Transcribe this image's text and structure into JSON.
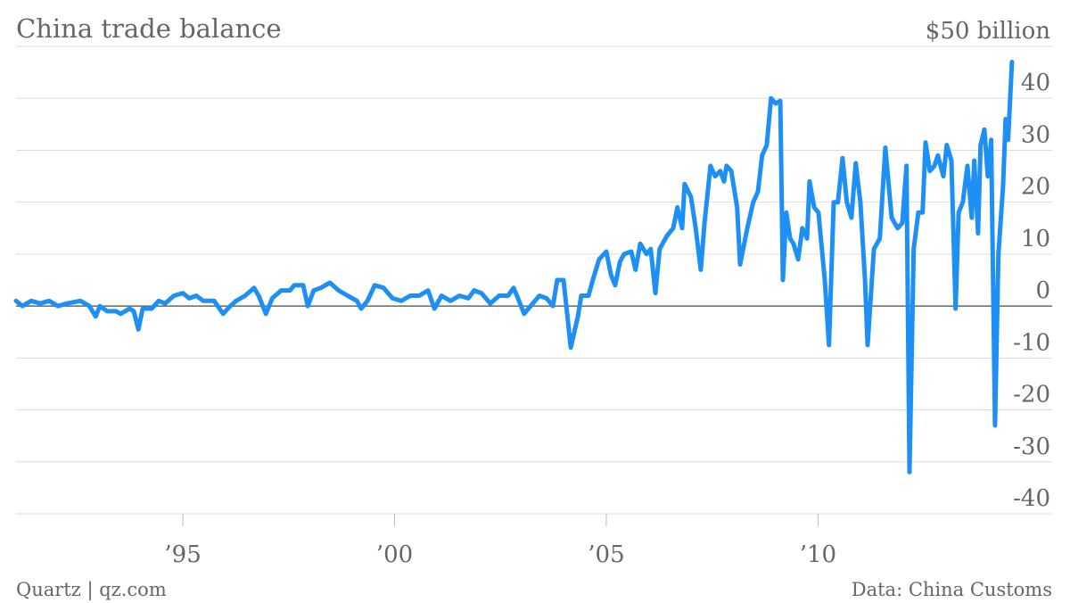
{
  "chart_data": {
    "type": "line",
    "title": "China trade balance",
    "source": "Data: China Customs",
    "credit": "Quartz | qz.com",
    "x": [
      1991.06,
      1991.21,
      1991.42,
      1991.63,
      1991.84,
      1992.05,
      1992.26,
      1992.58,
      1992.79,
      1992.94,
      1993.04,
      1993.21,
      1993.42,
      1993.53,
      1993.74,
      1993.84,
      1993.95,
      1994.05,
      1994.26,
      1994.43,
      1994.58,
      1994.79,
      1995.0,
      1995.15,
      1995.32,
      1995.48,
      1995.74,
      1995.95,
      1996.12,
      1996.26,
      1996.47,
      1996.68,
      1996.79,
      1996.96,
      1997.11,
      1997.32,
      1997.53,
      1997.63,
      1997.84,
      1997.95,
      1998.09,
      1998.26,
      1998.47,
      1998.68,
      1998.89,
      1999.11,
      1999.21,
      1999.36,
      1999.53,
      1999.74,
      1999.95,
      2000.16,
      2000.37,
      2000.58,
      2000.79,
      2000.94,
      2001.11,
      2001.32,
      2001.53,
      2001.74,
      2001.88,
      2002.05,
      2002.26,
      2002.47,
      2002.68,
      2002.81,
      2002.94,
      2003.06,
      2003.21,
      2003.42,
      2003.59,
      2003.74,
      2003.84,
      2003.99,
      2004.16,
      2004.33,
      2004.41,
      2004.58,
      2004.68,
      2004.83,
      2005.0,
      2005.11,
      2005.21,
      2005.32,
      2005.42,
      2005.59,
      2005.69,
      2005.8,
      2005.95,
      2006.05,
      2006.16,
      2006.26,
      2006.43,
      2006.58,
      2006.68,
      2006.79,
      2006.85,
      2007.0,
      2007.11,
      2007.23,
      2007.32,
      2007.46,
      2007.57,
      2007.69,
      2007.78,
      2007.84,
      2007.95,
      2008.09,
      2008.16,
      2008.33,
      2008.47,
      2008.58,
      2008.68,
      2008.79,
      2008.89,
      2009.0,
      2009.11,
      2009.17,
      2009.25,
      2009.34,
      2009.42,
      2009.53,
      2009.63,
      2009.74,
      2009.8,
      2009.91,
      2010.01,
      2010.16,
      2010.26,
      2010.37,
      2010.47,
      2010.58,
      2010.68,
      2010.79,
      2010.89,
      2011.0,
      2011.11,
      2011.17,
      2011.32,
      2011.46,
      2011.59,
      2011.74,
      2011.88,
      2011.99,
      2012.09,
      2012.16,
      2012.26,
      2012.37,
      2012.47,
      2012.54,
      2012.64,
      2012.75,
      2012.83,
      2012.96,
      2013.04,
      2013.15,
      2013.25,
      2013.32,
      2013.42,
      2013.53,
      2013.63,
      2013.69,
      2013.78,
      2013.84,
      2013.93,
      2014.01,
      2014.09,
      2014.18,
      2014.26,
      2014.37,
      2014.43,
      2014.49,
      2014.58
    ],
    "series": [
      {
        "color": "#1e90f5",
        "values": [
          1,
          0,
          1,
          0.5,
          1,
          0,
          0.5,
          1,
          0,
          -2,
          0,
          -1,
          -1,
          -1.5,
          -0.5,
          -1,
          -4.5,
          -0.5,
          -0.5,
          1,
          0.5,
          2,
          2.5,
          1.5,
          2,
          1,
          1,
          -1.5,
          0,
          1,
          2,
          3.5,
          2,
          -1.5,
          1.5,
          3,
          3,
          4,
          4,
          0,
          3,
          3.5,
          4.5,
          3,
          2,
          1,
          -0.5,
          1,
          4,
          3.5,
          1.5,
          1,
          2,
          2,
          3,
          -0.5,
          2,
          1,
          2,
          1.5,
          3,
          2.5,
          0.5,
          2,
          2,
          3.5,
          1,
          -1.5,
          0,
          2,
          1.5,
          0,
          5,
          5,
          -8,
          -2,
          2,
          2,
          5,
          9,
          10.5,
          6,
          4,
          8.5,
          10,
          10.5,
          7,
          12,
          10,
          11,
          2.5,
          11,
          13.5,
          15,
          19,
          15,
          23.5,
          21,
          15,
          7,
          16,
          27,
          25,
          26,
          24,
          27,
          26,
          19,
          8,
          15,
          20,
          22,
          29,
          31,
          40,
          39,
          39.5,
          5,
          18,
          13,
          12,
          9,
          15,
          13,
          24,
          19,
          18,
          5,
          -7.5,
          20,
          20,
          28.5,
          20,
          17,
          27.5,
          20,
          5,
          -7.5,
          11,
          13,
          30.5,
          17,
          15,
          16,
          27,
          -32,
          11,
          18,
          18,
          31.5,
          26,
          27,
          29,
          25,
          31,
          28,
          -0.5,
          18,
          20,
          27,
          17,
          28,
          14,
          31,
          34,
          25,
          32,
          -23,
          10,
          23,
          36,
          32,
          47
        ]
      }
    ],
    "xlim": [
      1991.06,
      2015.53
    ],
    "xticks": [
      {
        "value": 1995,
        "label": "’95"
      },
      {
        "value": 2000,
        "label": "’00"
      },
      {
        "value": 2005,
        "label": "’05"
      },
      {
        "value": 2010,
        "label": "’10"
      }
    ],
    "ylim": [
      -40,
      50
    ],
    "yticks": [
      -40,
      -30,
      -20,
      -10,
      0,
      10,
      20,
      30,
      40,
      {
        "value": 50,
        "label": "$50 billion"
      }
    ],
    "grid": true
  }
}
